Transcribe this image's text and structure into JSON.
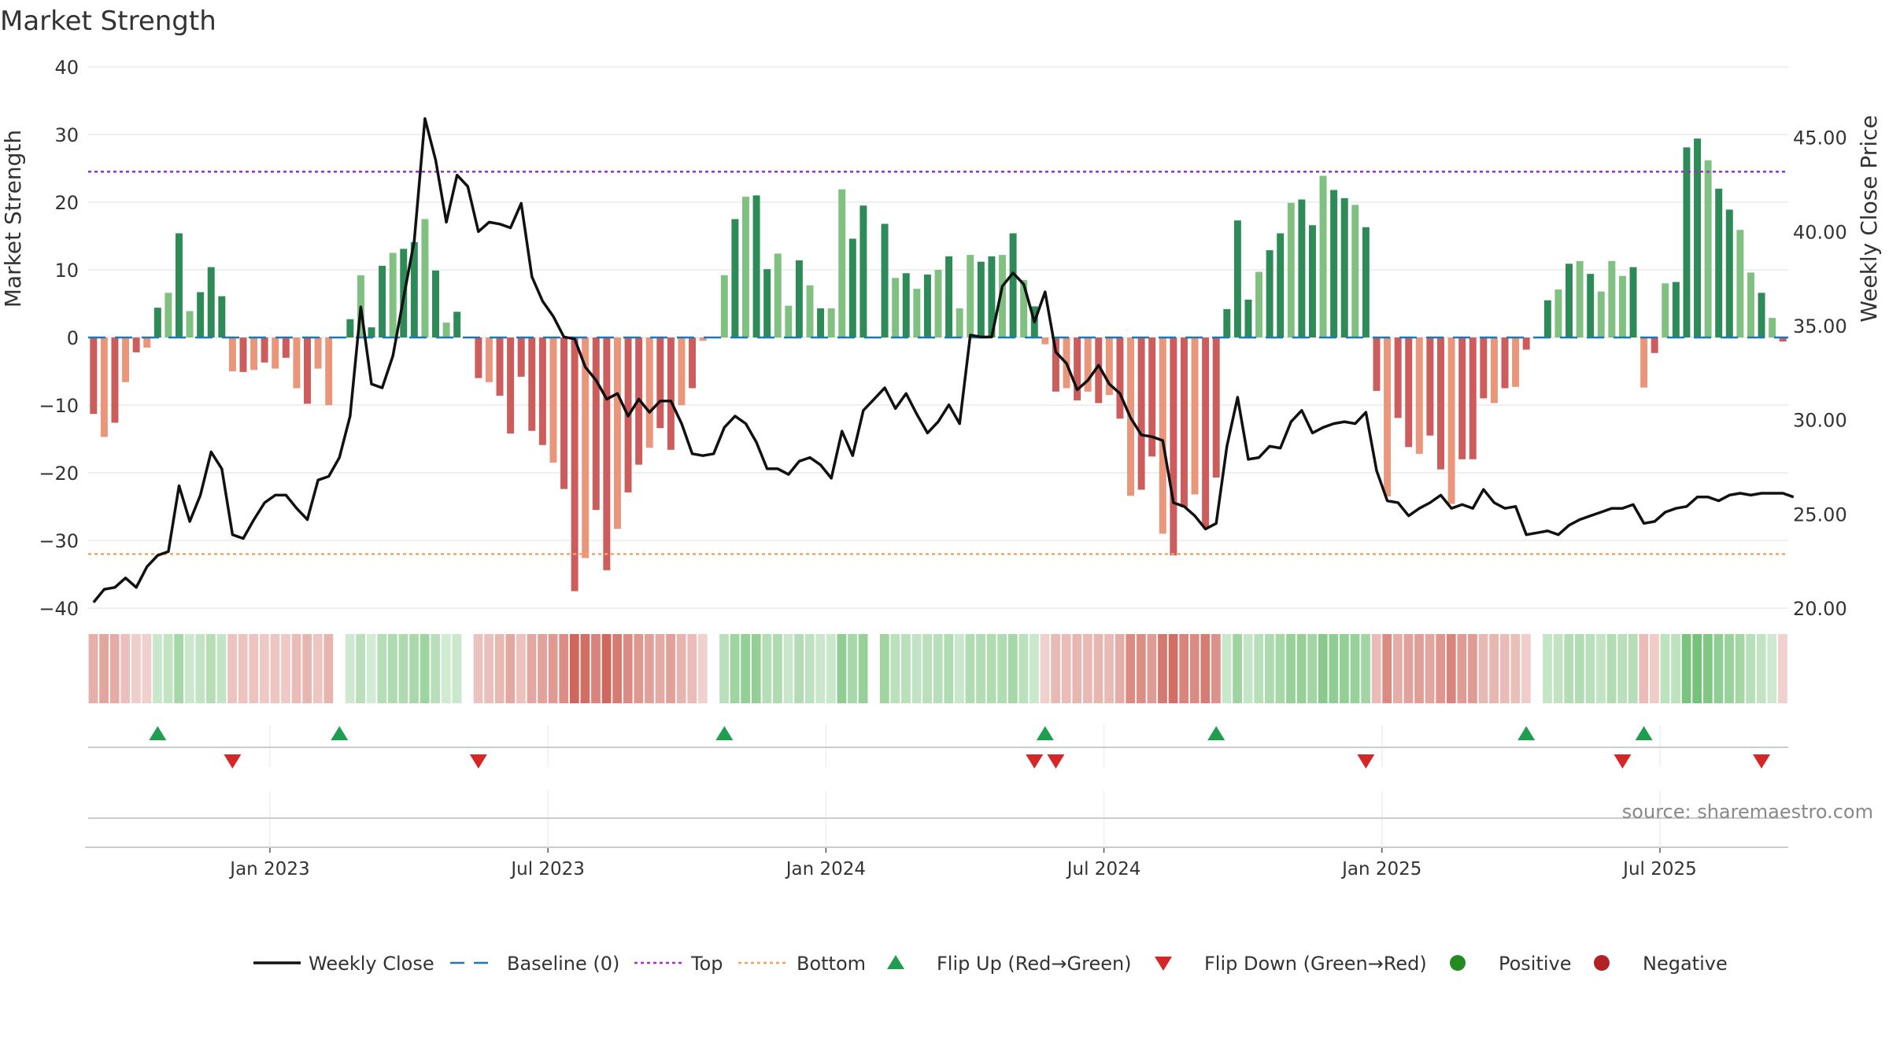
{
  "chart_data": {
    "type": "bar",
    "title": "Market Strength",
    "ylabel": "Market Strength",
    "y2label": "Weekly Close Price",
    "ylim": [
      -40,
      40
    ],
    "y2lim": [
      20,
      48.75
    ],
    "yticks": [
      40,
      30,
      20,
      10,
      0,
      -10,
      -20,
      -30,
      -40
    ],
    "ytick_labels": [
      "40",
      "30",
      "20",
      "10",
      "0",
      "−10",
      "−20",
      "−30",
      "−40"
    ],
    "y2ticks": [
      45,
      40,
      35,
      30,
      25,
      20
    ],
    "y2tick_labels": [
      "45.00",
      "40.00",
      "35.00",
      "30.00",
      "25.00",
      "20.00"
    ],
    "x_start": "2022-09-05",
    "x_end": "2025-09-08",
    "xtick_labels": [
      "Jan 2023",
      "Jul 2023",
      "Jan 2024",
      "Jul 2024",
      "Jan 2025",
      "Jul 2025"
    ],
    "xtick_weeks": [
      17,
      43,
      69,
      95,
      121,
      147
    ],
    "top_line": 24.5,
    "bottom_line": -32,
    "strength": [
      -11.3,
      -14.7,
      -12.6,
      -6.6,
      -2.2,
      -1.5,
      4.4,
      6.6,
      15.4,
      3.9,
      6.7,
      10.4,
      6.1,
      -5.0,
      -5.1,
      -4.8,
      -3.7,
      -4.6,
      -3.0,
      -7.5,
      -9.8,
      -4.6,
      -10.0,
      0,
      2.7,
      9.2,
      1.5,
      10.6,
      12.5,
      13.1,
      14.1,
      17.5,
      9.9,
      2.2,
      3.8,
      0,
      -6.0,
      -6.6,
      -8.6,
      -14.2,
      -5.8,
      -13.8,
      -15.9,
      -18.5,
      -22.4,
      -37.5,
      -32.6,
      -25.5,
      -34.4,
      -28.3,
      -22.9,
      -18.8,
      -16.3,
      -13.4,
      -16.6,
      -10.0,
      -7.5,
      -0.5,
      0,
      9.2,
      17.5,
      20.8,
      21.0,
      10.1,
      12.4,
      4.7,
      11.4,
      7.7,
      4.3,
      4.3,
      21.9,
      14.6,
      19.5,
      0,
      16.8,
      8.8,
      9.5,
      7.2,
      9.3,
      10.0,
      12.0,
      4.3,
      12.2,
      11.2,
      12.0,
      12.2,
      15.4,
      8.5,
      4.6,
      -1.0,
      -8.0,
      -7.5,
      -9.3,
      -8.0,
      -9.7,
      -8.5,
      -12.0,
      -23.4,
      -22.5,
      -17.6,
      -29.0,
      -32.2,
      -25.1,
      -23.2,
      -28.0,
      -20.7,
      4.2,
      17.3,
      5.6,
      9.7,
      12.9,
      15.4,
      19.9,
      20.4,
      16.6,
      23.9,
      21.8,
      20.6,
      19.6,
      16.3,
      -7.9,
      -23.5,
      -11.9,
      -16.2,
      -17.2,
      -14.5,
      -19.5,
      -24.6,
      -18.0,
      -18.0,
      -9.0,
      -9.7,
      -7.5,
      -7.3,
      -1.8,
      0,
      5.5,
      7.1,
      10.9,
      11.3,
      9.4,
      6.8,
      11.3,
      9.1,
      10.4,
      -7.4,
      -2.3,
      8.0,
      8.2,
      28.1,
      29.4,
      26.2,
      22.0,
      18.9,
      15.9,
      9.6,
      6.6,
      2.9,
      -0.6
    ],
    "close": [
      20.3,
      21.0,
      21.1,
      21.6,
      21.1,
      22.2,
      22.8,
      23.0,
      26.5,
      24.6,
      26.0,
      28.3,
      27.4,
      23.9,
      23.7,
      24.7,
      25.6,
      26.0,
      26.0,
      25.3,
      24.7,
      26.8,
      27.0,
      28.0,
      30.2,
      36.0,
      31.9,
      31.7,
      33.4,
      36.5,
      39.5,
      46.0,
      43.8,
      40.5,
      43.0,
      42.4,
      40.0,
      40.5,
      40.4,
      40.2,
      41.5,
      37.6,
      36.3,
      35.5,
      34.4,
      34.3,
      32.8,
      32.1,
      31.1,
      31.4,
      30.2,
      31.1,
      30.4,
      31.0,
      31.0,
      29.8,
      28.2,
      28.1,
      28.2,
      29.6,
      30.2,
      29.8,
      28.8,
      27.4,
      27.4,
      27.1,
      27.8,
      28.0,
      27.6,
      26.9,
      29.4,
      28.1,
      30.5,
      31.1,
      31.7,
      30.6,
      31.4,
      30.3,
      29.3,
      29.9,
      30.8,
      29.8,
      34.5,
      34.4,
      34.4,
      37.1,
      37.8,
      37.2,
      35.2,
      36.8,
      33.6,
      33.0,
      31.6,
      32.1,
      32.9,
      31.9,
      31.4,
      30.1,
      29.2,
      29.1,
      28.9,
      25.6,
      25.4,
      24.9,
      24.2,
      24.5,
      28.6,
      31.2,
      27.9,
      28.0,
      28.6,
      28.5,
      29.9,
      30.5,
      29.3,
      29.6,
      29.8,
      29.9,
      29.8,
      30.4,
      27.3,
      25.7,
      25.6,
      24.9,
      25.3,
      25.6,
      26.0,
      25.3,
      25.5,
      25.3,
      26.3,
      25.6,
      25.3,
      25.4,
      23.9,
      24.0,
      24.1,
      23.9,
      24.4,
      24.7,
      24.9,
      25.1,
      25.3,
      25.3,
      25.5,
      24.5,
      24.6,
      25.1,
      25.3,
      25.4,
      25.9,
      25.9,
      25.7,
      26.0,
      26.1,
      26.0,
      26.1,
      26.1,
      26.1,
      25.9
    ],
    "flip_up": [
      6,
      23,
      59,
      89,
      105,
      134,
      145
    ],
    "flip_down": [
      13,
      36,
      88,
      90,
      119,
      143,
      156
    ],
    "legend": [
      "Weekly Close",
      "Baseline (0)",
      "Top",
      "Bottom",
      "Flip Up (Red→Green)",
      "Flip Down (Green→Red)",
      "Positive",
      "Negative"
    ],
    "source": "source: sharemaestro.com",
    "colors": {
      "pos_strong": "#2e8b57",
      "pos_weak": "#80c080",
      "neg_strong": "#cd5c5c",
      "neg_weak": "#e9967a",
      "close_line": "#111111",
      "baseline": "#1f77b4",
      "top": "#9932cc",
      "bottom": "#f4a460",
      "flip_up": "#1e9e4f",
      "flip_down": "#d62728",
      "positive_dot": "#228b22",
      "negative_dot": "#b22222"
    }
  }
}
